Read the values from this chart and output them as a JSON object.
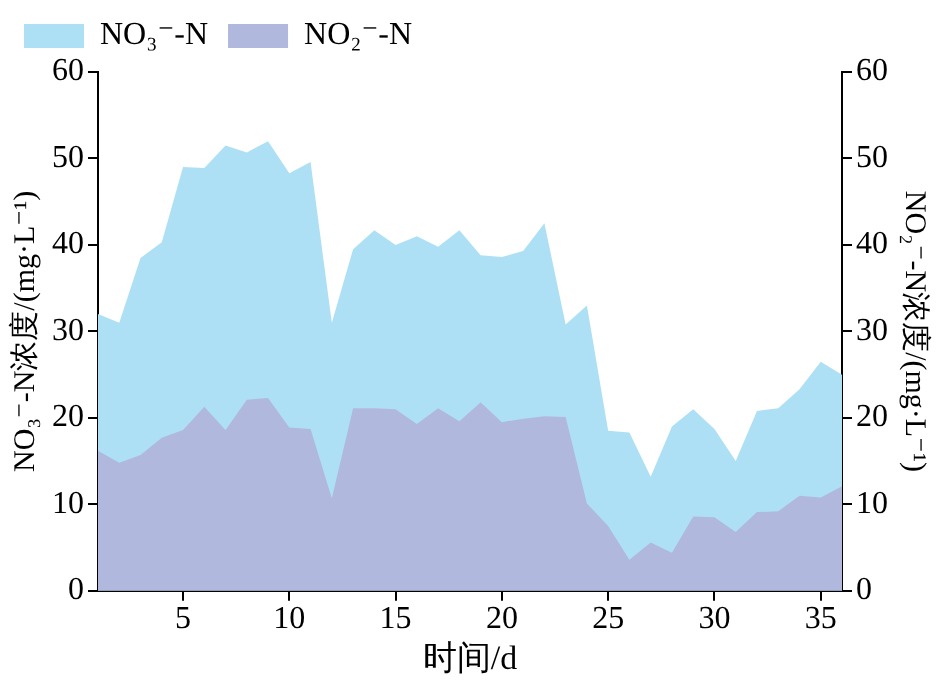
{
  "chart_data": {
    "type": "area",
    "xlabel": "时间/d",
    "ylabel": "NO₃⁻-N浓度/(mg·L⁻¹)",
    "y2label": "NO₂⁻-N浓度/(mg·L⁻¹)",
    "x": [
      1,
      2,
      3,
      4,
      5,
      6,
      7,
      8,
      9,
      10,
      11,
      12,
      13,
      14,
      15,
      16,
      17,
      18,
      19,
      20,
      21,
      22,
      23,
      24,
      25,
      26,
      27,
      28,
      29,
      30,
      31,
      32,
      33,
      34,
      35,
      36
    ],
    "series": [
      {
        "name": "NO₃⁻-N",
        "color": "#aee0f5",
        "values": [
          32,
          31,
          38.5,
          40.3,
          49,
          48.9,
          51.5,
          50.7,
          52,
          48.3,
          49.6,
          31,
          39.5,
          41.7,
          40,
          41,
          39.8,
          41.7,
          38.8,
          38.6,
          39.3,
          42.5,
          30.8,
          33,
          18.5,
          18.3,
          13.2,
          19,
          21,
          18.7,
          15,
          20.8,
          21.1,
          23.3,
          26.5,
          25
        ]
      },
      {
        "name": "NO₂⁻-N",
        "color": "#b0b9dd",
        "axis": "y2",
        "values": [
          16.2,
          14.8,
          15.7,
          17.7,
          18.6,
          21.3,
          18.6,
          22.1,
          22.3,
          18.9,
          18.7,
          10.7,
          21.1,
          21.1,
          21,
          19.3,
          21.1,
          19.6,
          21.8,
          19.5,
          19.9,
          20.2,
          20.1,
          10.1,
          7.5,
          3.6,
          5.6,
          4.4,
          8.6,
          8.5,
          6.8,
          9.1,
          9.2,
          11,
          10.8,
          12.1
        ]
      }
    ],
    "xlim": [
      1,
      36
    ],
    "xticks": [
      5,
      10,
      15,
      20,
      25,
      30,
      35
    ],
    "ylim": [
      0,
      60
    ],
    "yticks": [
      0,
      10,
      20,
      30,
      40,
      50,
      60
    ],
    "y2lim": [
      0,
      60
    ],
    "y2ticks": [
      0,
      10,
      20,
      30,
      40,
      50,
      60
    ],
    "grid": false,
    "legend": "top left"
  }
}
